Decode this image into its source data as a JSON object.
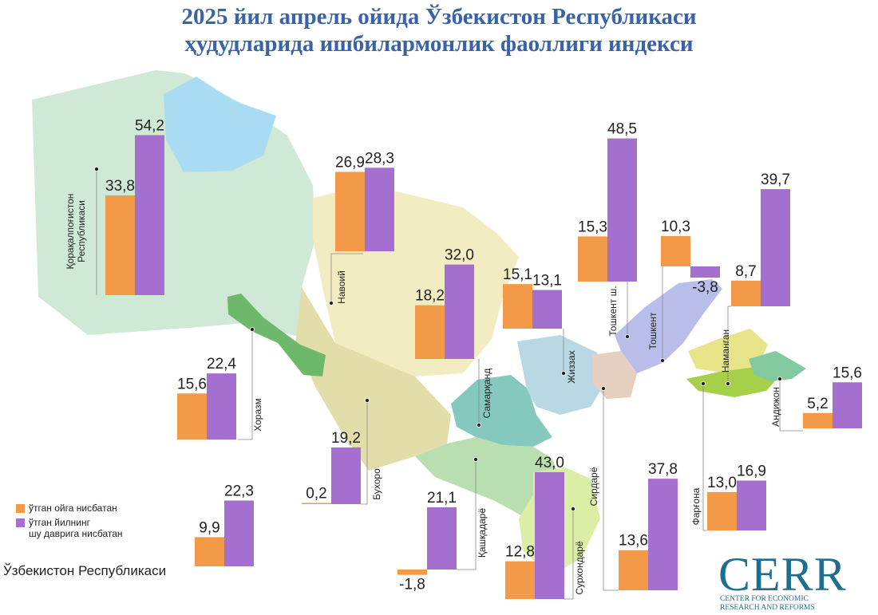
{
  "title": {
    "line1": "2025 йил апрель ойида Ўзбекистон Республикаси",
    "line2": "ҳудудларида ишбилармонлик фаоллиги индекси"
  },
  "colors": {
    "month": "#f39a48",
    "year": "#a56fd0",
    "title": "#3a62a8",
    "logo": "#1f6e8e"
  },
  "legend": {
    "month": "ўтган ойга нисбатан",
    "year_line1": "ўтган йилнинг",
    "year_line2": "шу даврига нисбатан"
  },
  "national": {
    "label": "Ўзбекистон Республикаси"
  },
  "logo": {
    "word": "CERR",
    "sub_line1": "CENTER FOR ECONOMIC",
    "sub_line2": "RESEARCH AND REFORMS"
  },
  "chart_data": {
    "type": "bar",
    "series": [
      {
        "key": "month",
        "name": "ўтган ойга нисбатан"
      },
      {
        "key": "year",
        "name": "ўтган йилнинг шу даврига нисбатан"
      }
    ],
    "regions": [
      {
        "name": "Қорақалпоғистон Республикаси",
        "month": 33.8,
        "year": 54.2,
        "month_label": "33,8",
        "year_label": "54,2"
      },
      {
        "name": "Навоий",
        "month": 26.9,
        "year": 28.3,
        "month_label": "26,9",
        "year_label": "28,3"
      },
      {
        "name": "Хоразм",
        "month": 15.6,
        "year": 22.4,
        "month_label": "15,6",
        "year_label": "22,4"
      },
      {
        "name": "Бухоро",
        "month": 0.2,
        "year": 19.2,
        "month_label": "0,2",
        "year_label": "19,2"
      },
      {
        "name": "Самарқанд",
        "month": 18.2,
        "year": 32.0,
        "month_label": "18,2",
        "year_label": "32,0"
      },
      {
        "name": "Жиззах",
        "month": 15.1,
        "year": 13.1,
        "month_label": "15,1",
        "year_label": "13,1"
      },
      {
        "name": "Қашқадарё",
        "month": -1.8,
        "year": 21.1,
        "month_label": "-1,8",
        "year_label": "21,1"
      },
      {
        "name": "Сурхондарё",
        "month": 12.8,
        "year": 43.0,
        "month_label": "12,8",
        "year_label": "43,0"
      },
      {
        "name": "Сирдарё",
        "month": 13.6,
        "year": 37.8,
        "month_label": "13,6",
        "year_label": "37,8"
      },
      {
        "name": "Тошкент ш.",
        "month": 15.3,
        "year": 48.5,
        "month_label": "15,3",
        "year_label": "48,5"
      },
      {
        "name": "Тошкент",
        "month": 10.3,
        "year": -3.8,
        "month_label": "10,3",
        "year_label": "-3,8"
      },
      {
        "name": "Наманган",
        "month": 8.7,
        "year": 39.7,
        "month_label": "8,7",
        "year_label": "39,7"
      },
      {
        "name": "Фарғона",
        "month": 13.0,
        "year": 16.9,
        "month_label": "13,0",
        "year_label": "16,9"
      },
      {
        "name": "Андижон",
        "month": 5.2,
        "year": 15.6,
        "month_label": "5,2",
        "year_label": "15,6"
      },
      {
        "name": "Ўзбекистон Республикаси",
        "month": 9.9,
        "year": 22.3,
        "month_label": "9,9",
        "year_label": "22,3"
      }
    ]
  }
}
